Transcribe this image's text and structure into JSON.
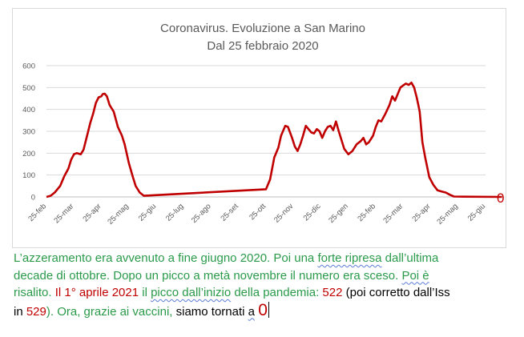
{
  "chart_data": {
    "type": "line",
    "title": "Coronavirus. Evoluzione a San Marino",
    "subtitle": "Dal 25 febbraio 2020",
    "ylim": [
      0,
      600
    ],
    "yticks": [
      0,
      100,
      200,
      300,
      400,
      500,
      600
    ],
    "categories": [
      "25-feb",
      "25-mar",
      "25-apr",
      "25-mag",
      "25-giu",
      "25-lug",
      "25-ago",
      "25-set",
      "25-ott",
      "25-nov",
      "25-dic",
      "25-gen",
      "25-feb",
      "25-mar",
      "25-apr",
      "25-mag",
      "25-giu"
    ],
    "series_color": "#c00000",
    "grid": "horizontal",
    "end_label": "0",
    "series": [
      {
        "points": [
          [
            0,
            0
          ],
          [
            0.15,
            5
          ],
          [
            0.3,
            20
          ],
          [
            0.5,
            50
          ],
          [
            0.65,
            95
          ],
          [
            0.8,
            130
          ],
          [
            0.9,
            170
          ],
          [
            1.0,
            195
          ],
          [
            1.1,
            200
          ],
          [
            1.25,
            195
          ],
          [
            1.35,
            215
          ],
          [
            1.5,
            290
          ],
          [
            1.6,
            340
          ],
          [
            1.7,
            380
          ],
          [
            1.8,
            430
          ],
          [
            1.9,
            455
          ],
          [
            2.0,
            460
          ],
          [
            2.05,
            470
          ],
          [
            2.12,
            472
          ],
          [
            2.2,
            460
          ],
          [
            2.3,
            420
          ],
          [
            2.45,
            390
          ],
          [
            2.6,
            320
          ],
          [
            2.75,
            280
          ],
          [
            2.85,
            240
          ],
          [
            3.0,
            155
          ],
          [
            3.15,
            90
          ],
          [
            3.25,
            50
          ],
          [
            3.4,
            20
          ],
          [
            3.55,
            5
          ],
          [
            8.0,
            35
          ],
          [
            8.15,
            80
          ],
          [
            8.3,
            180
          ],
          [
            8.45,
            225
          ],
          [
            8.55,
            280
          ],
          [
            8.7,
            325
          ],
          [
            8.8,
            320
          ],
          [
            8.95,
            270
          ],
          [
            9.05,
            230
          ],
          [
            9.15,
            210
          ],
          [
            9.25,
            240
          ],
          [
            9.35,
            280
          ],
          [
            9.45,
            325
          ],
          [
            9.55,
            310
          ],
          [
            9.65,
            295
          ],
          [
            9.75,
            290
          ],
          [
            9.85,
            310
          ],
          [
            9.95,
            300
          ],
          [
            10.05,
            270
          ],
          [
            10.15,
            300
          ],
          [
            10.25,
            320
          ],
          [
            10.35,
            325
          ],
          [
            10.45,
            305
          ],
          [
            10.55,
            345
          ],
          [
            10.65,
            300
          ],
          [
            10.75,
            260
          ],
          [
            10.85,
            220
          ],
          [
            11.0,
            195
          ],
          [
            11.15,
            210
          ],
          [
            11.3,
            240
          ],
          [
            11.45,
            255
          ],
          [
            11.55,
            270
          ],
          [
            11.65,
            240
          ],
          [
            11.75,
            250
          ],
          [
            11.9,
            280
          ],
          [
            12.0,
            320
          ],
          [
            12.1,
            350
          ],
          [
            12.2,
            345
          ],
          [
            12.35,
            380
          ],
          [
            12.5,
            420
          ],
          [
            12.6,
            460
          ],
          [
            12.7,
            440
          ],
          [
            12.8,
            470
          ],
          [
            12.9,
            500
          ],
          [
            13.0,
            510
          ],
          [
            13.1,
            518
          ],
          [
            13.2,
            512
          ],
          [
            13.3,
            522
          ],
          [
            13.4,
            500
          ],
          [
            13.5,
            450
          ],
          [
            13.6,
            390
          ],
          [
            13.7,
            250
          ],
          [
            13.8,
            180
          ],
          [
            13.95,
            90
          ],
          [
            14.1,
            55
          ],
          [
            14.25,
            30
          ],
          [
            14.4,
            25
          ],
          [
            14.55,
            20
          ],
          [
            14.7,
            10
          ],
          [
            14.85,
            2
          ],
          [
            15.2,
            1
          ],
          [
            16.6,
            0
          ]
        ]
      }
    ]
  },
  "caption": {
    "l1_a": "L’azzeramento era avvenuto a fine giugno 2020. Poi una ",
    "l1_b": "forte  ripresa",
    "l1_c": " dall’ultima",
    "l2": "decade di ottobre. Dopo un picco a metà novembre il numero era sceso. ",
    "l2_b": "Poi  è",
    "l3_a": "risalito. ",
    "l3_b": "Il 1° aprile 2021",
    "l3_c": " il ",
    "l3_d": "picco",
    "l3_e": "  dall’inizio",
    "l3_f": " della pandemia: ",
    "l3_g": "522",
    "l3_h": " (poi corretto dall’Iss",
    "l4_a": "in ",
    "l4_b": "529",
    "l4_c": "). ",
    "l4_d": "Ora, grazie ai vaccini,",
    "l4_e": " siamo tornati ",
    "l4_f": "a",
    "l4_g": "0"
  }
}
